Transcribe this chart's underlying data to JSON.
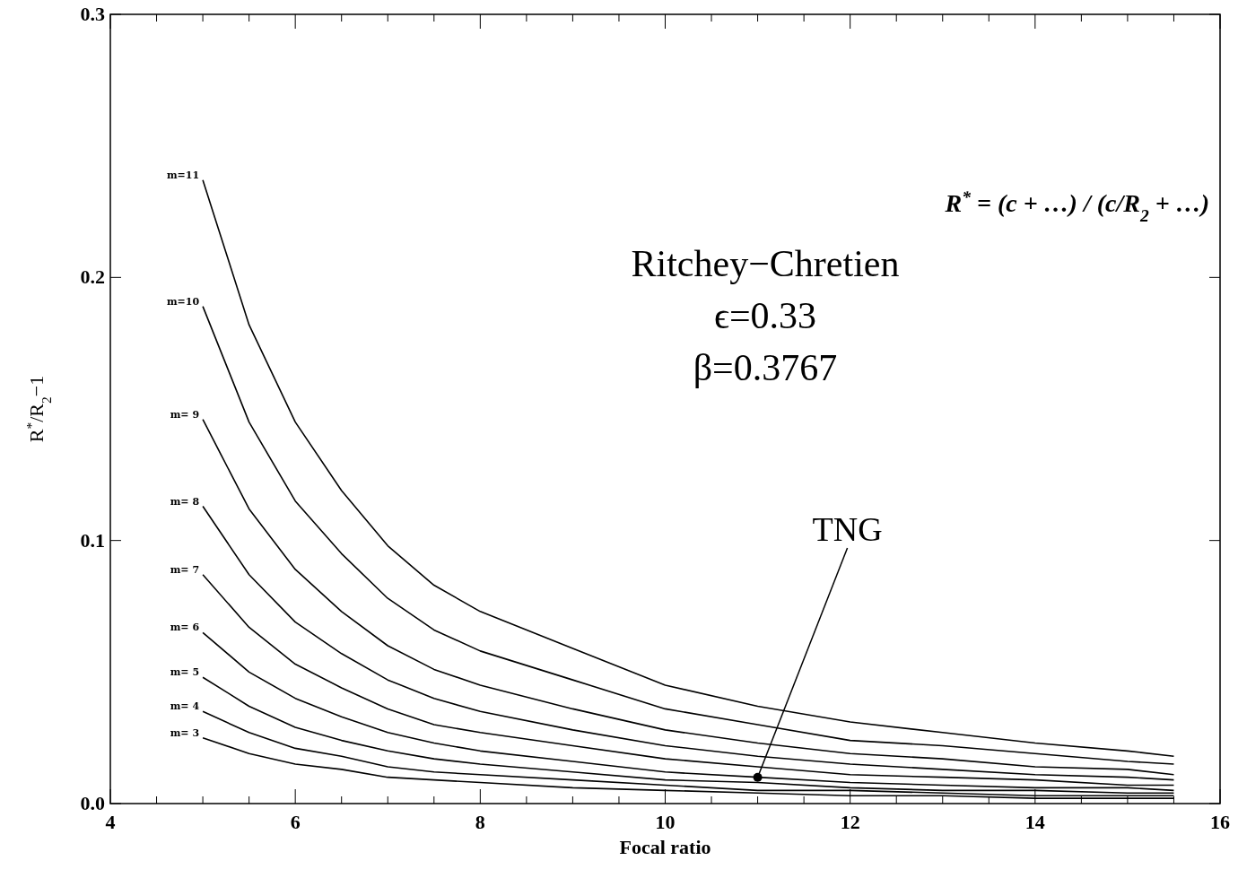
{
  "chart_data": {
    "type": "line",
    "xlabel": "Focal ratio",
    "ylabel": "R$^{*}$/R$_{2}$−1",
    "x": [
      5,
      5.5,
      6,
      6.5,
      7,
      7.5,
      8,
      9,
      10,
      11,
      12,
      13,
      14,
      15,
      15.5
    ],
    "xlim": [
      4,
      16
    ],
    "ylim": [
      0,
      0.3
    ],
    "xticks": [
      4,
      {
        "value": 4.5,
        "label": null
      },
      {
        "value": 5,
        "label": null
      },
      {
        "value": 5.5,
        "label": null
      },
      6,
      {
        "value": 6.5,
        "label": null
      },
      {
        "value": 7,
        "label": null
      },
      {
        "value": 7.5,
        "label": null
      },
      8,
      {
        "value": 8.5,
        "label": null
      },
      {
        "value": 9,
        "label": null
      },
      {
        "value": 9.5,
        "label": null
      },
      10,
      {
        "value": 10.5,
        "label": null
      },
      {
        "value": 11,
        "label": null
      },
      {
        "value": 11.5,
        "label": null
      },
      12,
      {
        "value": 12.5,
        "label": null
      },
      {
        "value": 13,
        "label": null
      },
      {
        "value": 13.5,
        "label": null
      },
      14,
      {
        "value": 14.5,
        "label": null
      },
      {
        "value": 15,
        "label": null
      },
      {
        "value": 15.5,
        "label": null
      },
      16
    ],
    "yticks": [
      {
        "value": 0,
        "label": "0.0"
      },
      0.1,
      0.2,
      0.3
    ],
    "marker": "none",
    "line_style": "solid",
    "grid": false,
    "series": [
      {
        "name": "m=11",
        "color": "#000000",
        "values": [
          0.237,
          0.182,
          0.145,
          0.119,
          0.098,
          0.083,
          0.073,
          0.059,
          0.045,
          0.037,
          0.031,
          0.027,
          0.023,
          0.02,
          0.018
        ]
      },
      {
        "name": "m=10",
        "color": "#000000",
        "values": [
          0.189,
          0.145,
          0.115,
          0.095,
          0.078,
          0.066,
          0.058,
          0.047,
          0.036,
          0.03,
          0.024,
          0.022,
          0.019,
          0.016,
          0.015
        ]
      },
      {
        "name": "m= 9",
        "color": "#000000",
        "values": [
          0.146,
          0.112,
          0.089,
          0.073,
          0.06,
          0.051,
          0.045,
          0.036,
          0.028,
          0.023,
          0.019,
          0.017,
          0.014,
          0.013,
          0.011
        ]
      },
      {
        "name": "m= 8",
        "color": "#000000",
        "values": [
          0.113,
          0.087,
          0.069,
          0.057,
          0.047,
          0.04,
          0.035,
          0.028,
          0.022,
          0.018,
          0.015,
          0.013,
          0.011,
          0.01,
          0.009
        ]
      },
      {
        "name": "m= 7",
        "color": "#000000",
        "values": [
          0.087,
          0.067,
          0.053,
          0.044,
          0.036,
          0.03,
          0.027,
          0.022,
          0.017,
          0.014,
          0.011,
          0.01,
          0.009,
          0.007,
          0.007
        ]
      },
      {
        "name": "m= 6",
        "color": "#000000",
        "values": [
          0.065,
          0.05,
          0.04,
          0.033,
          0.027,
          0.023,
          0.02,
          0.016,
          0.012,
          0.01,
          0.008,
          0.007,
          0.006,
          0.006,
          0.005
        ]
      },
      {
        "name": "m= 5",
        "color": "#000000",
        "values": [
          0.048,
          0.037,
          0.029,
          0.024,
          0.02,
          0.017,
          0.015,
          0.012,
          0.009,
          0.008,
          0.006,
          0.005,
          0.005,
          0.004,
          0.004
        ]
      },
      {
        "name": "m= 4",
        "color": "#000000",
        "values": [
          0.035,
          0.027,
          0.021,
          0.018,
          0.014,
          0.012,
          0.011,
          0.009,
          0.007,
          0.005,
          0.005,
          0.004,
          0.003,
          0.003,
          0.003
        ]
      },
      {
        "name": "m= 3",
        "color": "#000000",
        "values": [
          0.025,
          0.019,
          0.015,
          0.013,
          0.01,
          0.009,
          0.008,
          0.006,
          0.005,
          0.004,
          0.003,
          0.003,
          0.002,
          0.002,
          0.002
        ]
      },
      {
        "type": "scatter",
        "marker": "circle",
        "color": "#000000",
        "x": [
          11
        ],
        "values": [
          0.01
        ]
      }
    ],
    "annotations": [
      "Ritchey−Chretien",
      "ϵ=0.33",
      "β=0.3767",
      {
        "text": "TNG",
        "x": 11,
        "y": 0.01
      },
      "R$^{*}$ = (c + …) / (c/R$_{2}$ + …)"
    ]
  }
}
